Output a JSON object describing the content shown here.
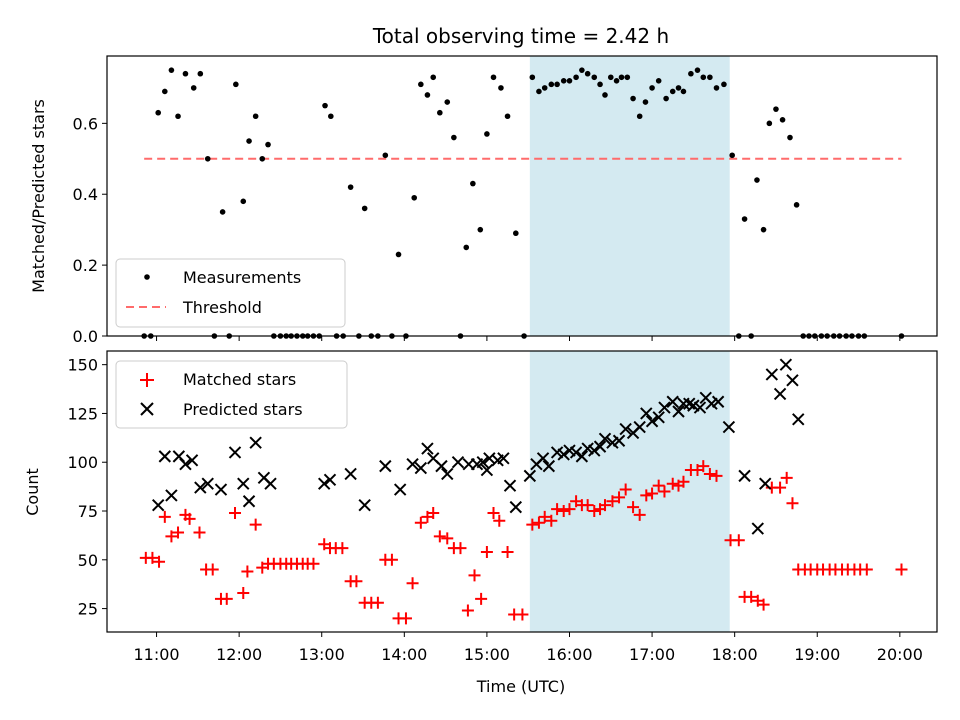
{
  "chart_data": {
    "type": "scatter",
    "title": "Total observing time = 2.42 h",
    "xlabel": "Time (UTC)",
    "x_ticks": [
      "11:00",
      "12:00",
      "13:00",
      "14:00",
      "15:00",
      "16:00",
      "17:00",
      "18:00",
      "19:00",
      "20:00"
    ],
    "xlim_hours": [
      10.4,
      20.45
    ],
    "highlight_span_hours": [
      15.52,
      17.94
    ],
    "colors": {
      "measurement": "#000000",
      "threshold": "#ff6b6b",
      "matched": "#ff0000",
      "predicted": "#000000",
      "span": "#d4eaf1"
    },
    "top": {
      "ylabel": "Matched/Predicted stars",
      "ylim": [
        0,
        0.79
      ],
      "y_ticks": [
        "0.0",
        "0.2",
        "0.4",
        "0.6"
      ],
      "threshold": {
        "name": "Threshold",
        "value": 0.5,
        "x_range_hours": [
          10.85,
          20.02
        ]
      },
      "measurements": {
        "name": "Measurements",
        "points": [
          [
            10.85,
            0
          ],
          [
            10.93,
            0
          ],
          [
            11.02,
            0.63
          ],
          [
            11.1,
            0.69
          ],
          [
            11.18,
            0.75
          ],
          [
            11.26,
            0.62
          ],
          [
            11.35,
            0.74
          ],
          [
            11.45,
            0.7
          ],
          [
            11.53,
            0.74
          ],
          [
            11.62,
            0.5
          ],
          [
            11.7,
            0
          ],
          [
            11.8,
            0.35
          ],
          [
            11.88,
            0
          ],
          [
            11.96,
            0.71
          ],
          [
            12.05,
            0.38
          ],
          [
            12.12,
            0.55
          ],
          [
            12.2,
            0.62
          ],
          [
            12.28,
            0.5
          ],
          [
            12.35,
            0.54
          ],
          [
            12.42,
            0
          ],
          [
            12.5,
            0
          ],
          [
            12.57,
            0
          ],
          [
            12.63,
            0
          ],
          [
            12.7,
            0
          ],
          [
            12.77,
            0
          ],
          [
            12.83,
            0
          ],
          [
            12.9,
            0
          ],
          [
            12.97,
            0
          ],
          [
            13.04,
            0.65
          ],
          [
            13.11,
            0.62
          ],
          [
            13.18,
            0
          ],
          [
            13.26,
            0
          ],
          [
            13.35,
            0.42
          ],
          [
            13.45,
            0
          ],
          [
            13.52,
            0.36
          ],
          [
            13.6,
            0
          ],
          [
            13.68,
            0
          ],
          [
            13.77,
            0.51
          ],
          [
            13.85,
            0
          ],
          [
            13.93,
            0.23
          ],
          [
            14.02,
            0
          ],
          [
            14.12,
            0.39
          ],
          [
            14.2,
            0.71
          ],
          [
            14.28,
            0.68
          ],
          [
            14.35,
            0.73
          ],
          [
            14.43,
            0.63
          ],
          [
            14.52,
            0.66
          ],
          [
            14.6,
            0.56
          ],
          [
            14.68,
            0
          ],
          [
            14.75,
            0.25
          ],
          [
            14.83,
            0.43
          ],
          [
            14.92,
            0.3
          ],
          [
            15.0,
            0.57
          ],
          [
            15.08,
            0.73
          ],
          [
            15.17,
            0.7
          ],
          [
            15.25,
            0.62
          ],
          [
            15.35,
            0.29
          ],
          [
            15.45,
            0
          ],
          [
            15.55,
            0.73
          ],
          [
            15.63,
            0.69
          ],
          [
            15.7,
            0.7
          ],
          [
            15.78,
            0.71
          ],
          [
            15.85,
            0.71
          ],
          [
            15.93,
            0.72
          ],
          [
            16.0,
            0.72
          ],
          [
            16.08,
            0.73
          ],
          [
            16.15,
            0.75
          ],
          [
            16.22,
            0.74
          ],
          [
            16.3,
            0.73
          ],
          [
            16.37,
            0.71
          ],
          [
            16.43,
            0.68
          ],
          [
            16.5,
            0.73
          ],
          [
            16.57,
            0.72
          ],
          [
            16.63,
            0.73
          ],
          [
            16.7,
            0.73
          ],
          [
            16.77,
            0.67
          ],
          [
            16.85,
            0.62
          ],
          [
            16.92,
            0.66
          ],
          [
            17.0,
            0.7
          ],
          [
            17.08,
            0.72
          ],
          [
            17.17,
            0.67
          ],
          [
            17.25,
            0.69
          ],
          [
            17.32,
            0.7
          ],
          [
            17.38,
            0.69
          ],
          [
            17.47,
            0.74
          ],
          [
            17.55,
            0.75
          ],
          [
            17.62,
            0.73
          ],
          [
            17.7,
            0.73
          ],
          [
            17.78,
            0.7
          ],
          [
            17.87,
            0.71
          ],
          [
            17.97,
            0.51
          ],
          [
            18.05,
            0
          ],
          [
            18.12,
            0.33
          ],
          [
            18.2,
            0
          ],
          [
            18.27,
            0.44
          ],
          [
            18.35,
            0.3
          ],
          [
            18.42,
            0.6
          ],
          [
            18.5,
            0.64
          ],
          [
            18.58,
            0.61
          ],
          [
            18.67,
            0.56
          ],
          [
            18.75,
            0.37
          ],
          [
            18.83,
            0
          ],
          [
            18.9,
            0
          ],
          [
            18.97,
            0
          ],
          [
            19.05,
            0
          ],
          [
            19.12,
            0
          ],
          [
            19.2,
            0
          ],
          [
            19.27,
            0
          ],
          [
            19.35,
            0
          ],
          [
            19.42,
            0
          ],
          [
            19.5,
            0
          ],
          [
            19.57,
            0
          ],
          [
            20.02,
            0
          ]
        ]
      }
    },
    "bottom": {
      "ylabel": "Count",
      "ylim": [
        13,
        157
      ],
      "y_ticks": [
        "25",
        "50",
        "75",
        "100",
        "125",
        "150"
      ],
      "matched": {
        "name": "Matched stars",
        "points": [
          [
            10.87,
            51
          ],
          [
            10.95,
            51
          ],
          [
            11.03,
            49
          ],
          [
            11.1,
            72
          ],
          [
            11.18,
            62
          ],
          [
            11.26,
            64
          ],
          [
            11.35,
            73
          ],
          [
            11.4,
            71
          ],
          [
            11.52,
            64
          ],
          [
            11.6,
            45
          ],
          [
            11.68,
            45
          ],
          [
            11.78,
            30
          ],
          [
            11.85,
            30
          ],
          [
            11.95,
            74
          ],
          [
            12.05,
            33
          ],
          [
            12.1,
            44
          ],
          [
            12.2,
            68
          ],
          [
            12.28,
            46
          ],
          [
            12.35,
            48
          ],
          [
            12.42,
            48
          ],
          [
            12.5,
            48
          ],
          [
            12.57,
            48
          ],
          [
            12.63,
            48
          ],
          [
            12.7,
            48
          ],
          [
            12.77,
            48
          ],
          [
            12.83,
            48
          ],
          [
            12.9,
            48
          ],
          [
            13.03,
            58
          ],
          [
            13.1,
            56
          ],
          [
            13.17,
            56
          ],
          [
            13.25,
            56
          ],
          [
            13.35,
            39
          ],
          [
            13.42,
            39
          ],
          [
            13.52,
            28
          ],
          [
            13.6,
            28
          ],
          [
            13.68,
            28
          ],
          [
            13.77,
            50
          ],
          [
            13.85,
            50
          ],
          [
            13.93,
            20
          ],
          [
            14.02,
            20
          ],
          [
            14.1,
            38
          ],
          [
            14.2,
            69
          ],
          [
            14.28,
            72
          ],
          [
            14.35,
            74
          ],
          [
            14.43,
            62
          ],
          [
            14.52,
            61
          ],
          [
            14.6,
            56
          ],
          [
            14.68,
            56
          ],
          [
            14.77,
            24
          ],
          [
            14.85,
            42
          ],
          [
            14.93,
            30
          ],
          [
            15.0,
            54
          ],
          [
            15.08,
            74
          ],
          [
            15.15,
            70
          ],
          [
            15.25,
            54
          ],
          [
            15.33,
            22
          ],
          [
            15.43,
            22
          ],
          [
            15.55,
            68
          ],
          [
            15.63,
            69
          ],
          [
            15.7,
            72
          ],
          [
            15.78,
            70
          ],
          [
            15.85,
            76
          ],
          [
            15.93,
            75
          ],
          [
            16.0,
            76
          ],
          [
            16.08,
            80
          ],
          [
            16.15,
            78
          ],
          [
            16.22,
            78
          ],
          [
            16.3,
            75
          ],
          [
            16.37,
            76
          ],
          [
            16.43,
            78
          ],
          [
            16.52,
            80
          ],
          [
            16.6,
            82
          ],
          [
            16.68,
            86
          ],
          [
            16.77,
            77
          ],
          [
            16.85,
            73
          ],
          [
            16.93,
            83
          ],
          [
            17.0,
            84
          ],
          [
            17.08,
            88
          ],
          [
            17.15,
            85
          ],
          [
            17.25,
            89
          ],
          [
            17.32,
            88
          ],
          [
            17.38,
            90
          ],
          [
            17.47,
            96
          ],
          [
            17.55,
            96
          ],
          [
            17.62,
            98
          ],
          [
            17.7,
            94
          ],
          [
            17.78,
            93
          ],
          [
            17.95,
            60
          ],
          [
            18.05,
            60
          ],
          [
            18.12,
            31
          ],
          [
            18.2,
            31
          ],
          [
            18.28,
            29
          ],
          [
            18.35,
            27
          ],
          [
            18.45,
            87
          ],
          [
            18.55,
            87
          ],
          [
            18.63,
            92
          ],
          [
            18.7,
            79
          ],
          [
            18.77,
            45
          ],
          [
            18.85,
            45
          ],
          [
            18.92,
            45
          ],
          [
            19.0,
            45
          ],
          [
            19.07,
            45
          ],
          [
            19.15,
            45
          ],
          [
            19.22,
            45
          ],
          [
            19.3,
            45
          ],
          [
            19.37,
            45
          ],
          [
            19.45,
            45
          ],
          [
            19.52,
            45
          ],
          [
            19.6,
            45
          ],
          [
            20.02,
            45
          ]
        ]
      },
      "predicted": {
        "name": "Predicted stars",
        "points": [
          [
            11.02,
            78
          ],
          [
            11.1,
            103
          ],
          [
            11.18,
            83
          ],
          [
            11.27,
            103
          ],
          [
            11.35,
            99
          ],
          [
            11.43,
            101
          ],
          [
            11.53,
            87
          ],
          [
            11.62,
            89
          ],
          [
            11.78,
            86
          ],
          [
            11.95,
            105
          ],
          [
            12.05,
            89
          ],
          [
            12.12,
            80
          ],
          [
            12.2,
            110
          ],
          [
            12.3,
            92
          ],
          [
            12.38,
            89
          ],
          [
            13.03,
            89
          ],
          [
            13.1,
            91
          ],
          [
            13.35,
            94
          ],
          [
            13.52,
            78
          ],
          [
            13.77,
            98
          ],
          [
            13.95,
            86
          ],
          [
            14.1,
            99
          ],
          [
            14.2,
            97
          ],
          [
            14.28,
            107
          ],
          [
            14.35,
            102
          ],
          [
            14.45,
            98
          ],
          [
            14.52,
            94
          ],
          [
            14.65,
            100
          ],
          [
            14.78,
            99
          ],
          [
            14.88,
            99
          ],
          [
            14.95,
            100
          ],
          [
            15.0,
            96
          ],
          [
            15.03,
            102
          ],
          [
            15.13,
            101
          ],
          [
            15.2,
            102
          ],
          [
            15.28,
            88
          ],
          [
            15.35,
            77
          ],
          [
            15.52,
            93
          ],
          [
            15.6,
            99
          ],
          [
            15.68,
            102
          ],
          [
            15.75,
            98
          ],
          [
            15.85,
            105
          ],
          [
            15.93,
            104
          ],
          [
            16.0,
            106
          ],
          [
            16.08,
            105
          ],
          [
            16.15,
            103
          ],
          [
            16.22,
            107
          ],
          [
            16.3,
            106
          ],
          [
            16.37,
            108
          ],
          [
            16.43,
            112
          ],
          [
            16.52,
            110
          ],
          [
            16.6,
            111
          ],
          [
            16.68,
            117
          ],
          [
            16.77,
            115
          ],
          [
            16.85,
            118
          ],
          [
            16.93,
            125
          ],
          [
            17.0,
            121
          ],
          [
            17.08,
            123
          ],
          [
            17.15,
            128
          ],
          [
            17.25,
            131
          ],
          [
            17.32,
            126
          ],
          [
            17.38,
            130
          ],
          [
            17.45,
            130
          ],
          [
            17.5,
            129
          ],
          [
            17.58,
            128
          ],
          [
            17.65,
            133
          ],
          [
            17.72,
            130
          ],
          [
            17.8,
            131
          ],
          [
            17.93,
            118
          ],
          [
            18.12,
            93
          ],
          [
            18.28,
            66
          ],
          [
            18.37,
            89
          ],
          [
            18.45,
            145
          ],
          [
            18.55,
            135
          ],
          [
            18.62,
            150
          ],
          [
            18.7,
            142
          ],
          [
            18.77,
            122
          ]
        ]
      }
    }
  }
}
